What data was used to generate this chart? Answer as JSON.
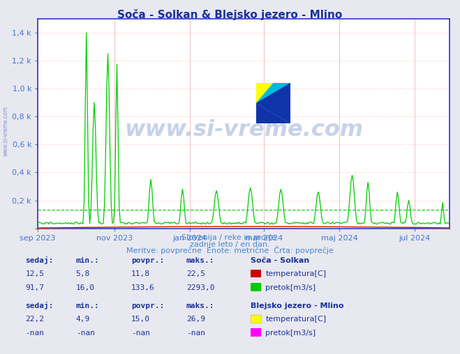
{
  "title": "Soča - Solkan & Blejsko jezero - Mlino",
  "title_color": "#1a3399",
  "background_color": "#e8e8f0",
  "plot_bg_color": "#ffffff",
  "grid_color": "#ffaaaa",
  "grid_dotted_color": "#ffcccc",
  "border_color": "#3333cc",
  "tick_color": "#4477cc",
  "watermark_text": "www.si-vreme.com",
  "watermark_color": "#003399",
  "watermark_alpha": 0.22,
  "subtitle_lines": [
    "Slovenija / reke in morje.",
    "zadnje leto / en dan.",
    "Meritve: povprečne  Enote: metrične  Črta: povprečje"
  ],
  "subtitle_color": "#4488cc",
  "xlim_start": 1693440000,
  "xlim_end": 1722211200,
  "ylim": [
    0,
    1500
  ],
  "yticks": [
    0,
    200,
    400,
    600,
    800,
    1000,
    1200,
    1400
  ],
  "ytick_labels": [
    "",
    "0,2 k",
    "0,4 k",
    "0,6 k",
    "0,8 k",
    "1,0 k",
    "1,2 k",
    "1,4 k"
  ],
  "xtick_labels": [
    "sep 2023",
    "nov 2023",
    "jan 2024",
    "mar 2024",
    "maj 2024",
    "jul 2024"
  ],
  "xtick_positions": [
    1693440000,
    1698796800,
    1704067200,
    1709251200,
    1714521600,
    1719792000
  ],
  "avg_line_value": 133.6,
  "avg_line_color": "#00bb00",
  "socan_temp_color": "#cc0000",
  "socan_pretok_color": "#00cc00",
  "blejsko_temp_color": "#ffff00",
  "blejsko_pretok_color": "#ff00ff",
  "arrow_color": "#880000",
  "vline_color": "#cc4444",
  "vline_alpha": 0.6,
  "info_text_color": "#1a3399",
  "font_mono": "monospace",
  "font_sans": "sans-serif",
  "side_watermark": "www.si-vreme.com"
}
